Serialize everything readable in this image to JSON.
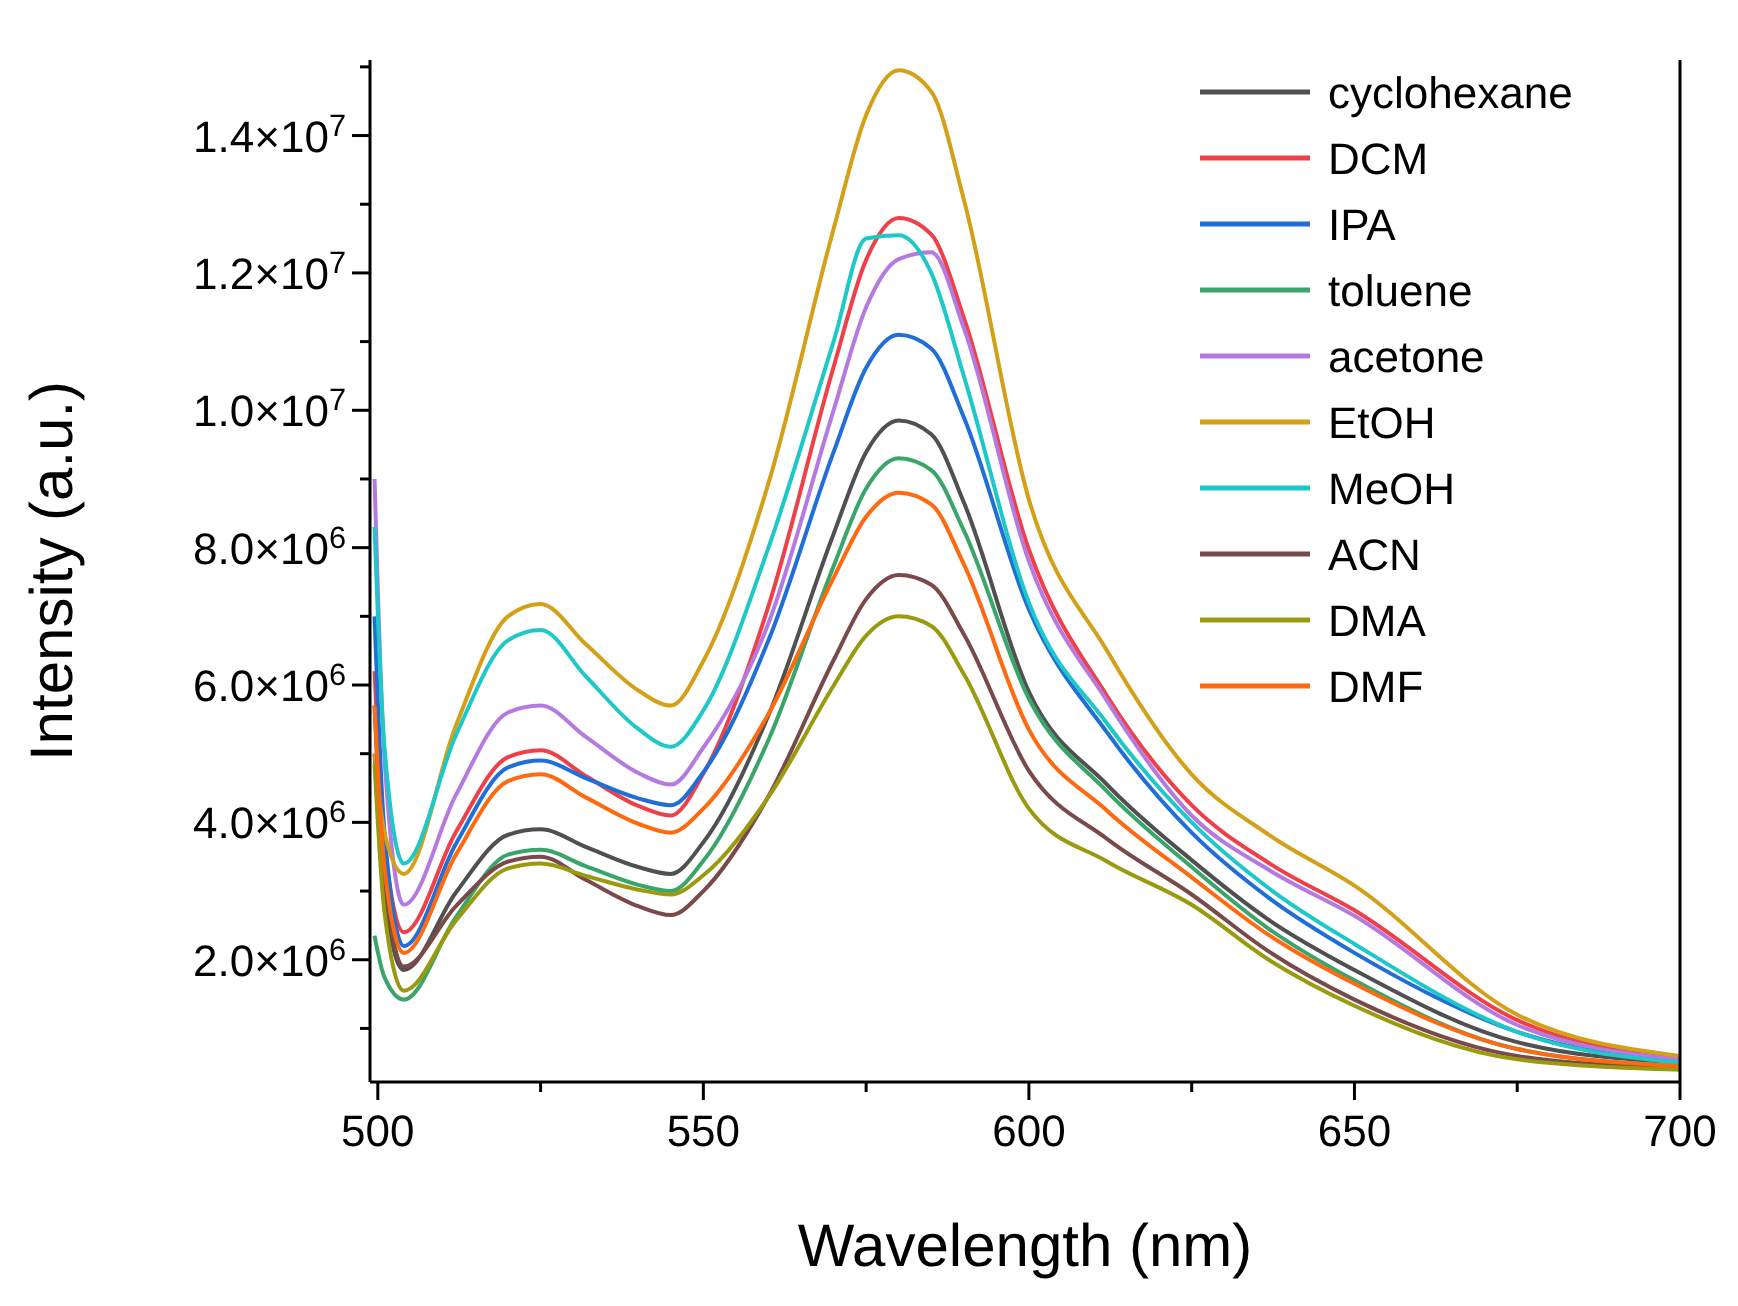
{
  "chart_data": {
    "type": "line",
    "xlabel": "Wavelength (nm)",
    "ylabel": "Intensity (a.u.)",
    "x": [
      499.5,
      501,
      504,
      512,
      520,
      525,
      532,
      540,
      545,
      550,
      560,
      570,
      575,
      580,
      585,
      590,
      600,
      612,
      625,
      637,
      650,
      675,
      700
    ],
    "series": [
      {
        "name": "cyclohexane",
        "color": "#505050",
        "values": [
          5000000.0,
          2950000.0,
          1850000.0,
          2980000.0,
          3820000.0,
          3900000.0,
          3640000.0,
          3350000.0,
          3250000.0,
          3710000.0,
          5560000.0,
          8200000.0,
          9390000.0,
          9850000.0,
          9650000.0,
          8660000.0,
          5900000.0,
          4550000.0,
          3450000.0,
          2570000.0,
          1850000.0,
          800000.0,
          500000.0
        ]
      },
      {
        "name": "DCM",
        "color": "#ef4049",
        "values": [
          6200000.0,
          3730000.0,
          2400000.0,
          3860000.0,
          4950000.0,
          5050000.0,
          4670000.0,
          4240000.0,
          4100000.0,
          4710000.0,
          7150000.0,
          10630000.0,
          12190000.0,
          12800000.0,
          12560000.0,
          11350000.0,
          7970000.0,
          5840000.0,
          4250000.0,
          3400000.0,
          2720000.0,
          1120000.0,
          550000.0
        ]
      },
      {
        "name": "IPA",
        "color": "#1f6fd6",
        "values": [
          7000000.0,
          3880000.0,
          2200000.0,
          3690000.0,
          4800000.0,
          4900000.0,
          4640000.0,
          4350000.0,
          4250000.0,
          4730000.0,
          6650000.0,
          9390000.0,
          10620000.0,
          11100000.0,
          10900000.0,
          9900000.0,
          7100000.0,
          5310000.0,
          3850000.0,
          2890000.0,
          2100000.0,
          950000.0,
          500000.0
        ]
      },
      {
        "name": "toluene",
        "color": "#3aa56b",
        "values": [
          2350000.0,
          1750000.0,
          1420000.0,
          2620000.0,
          3530000.0,
          3600000.0,
          3360000.0,
          3090000.0,
          3000000.0,
          3440000.0,
          5200000.0,
          7730000.0,
          8860000.0,
          9300000.0,
          9130000.0,
          8250000.0,
          5800000.0,
          4450000.0,
          3350000.0,
          2440000.0,
          1700000.0,
          700000.0,
          450000.0
        ]
      },
      {
        "name": "acetone",
        "color": "#b57ae0",
        "values": [
          9000000.0,
          4970000.0,
          2800000.0,
          4400000.0,
          5600000.0,
          5700000.0,
          5240000.0,
          4720000.0,
          4550000.0,
          5090000.0,
          6900000.0,
          10000000.0,
          11500000.0,
          12200000.0,
          12300000.0,
          11200000.0,
          7800000.0,
          5770000.0,
          4100000.0,
          3300000.0,
          2640000.0,
          1050000.0,
          550000.0
        ]
      },
      {
        "name": "EtOH",
        "color": "#d4a017",
        "values": [
          5000000.0,
          3860000.0,
          3250000.0,
          5410000.0,
          7000000.0,
          7180000.0,
          6590000.0,
          5920000.0,
          5700000.0,
          6350000.0,
          8940000.0,
          12640000.0,
          14300000.0,
          14950000.0,
          14640000.0,
          13070000.0,
          8700000.0,
          6500000.0,
          4700000.0,
          3810000.0,
          3080000.0,
          1200000.0,
          600000.0
        ]
      },
      {
        "name": "MeOH",
        "color": "#1fc8c8",
        "values": [
          8300000.0,
          5120000.0,
          3400000.0,
          5270000.0,
          6650000.0,
          6800000.0,
          6120000.0,
          5360000.0,
          5100000.0,
          5630000.0,
          8000000.0,
          11000000.0,
          12500000.0,
          12550000.0,
          12000000.0,
          10500000.0,
          7200000.0,
          5440000.0,
          4000000.0,
          3030000.0,
          2230000.0,
          950000.0,
          500000.0
        ]
      },
      {
        "name": "ACN",
        "color": "#7a4a4a",
        "values": [
          5700000.0,
          3230000.0,
          1900000.0,
          2780000.0,
          3430000.0,
          3500000.0,
          3160000.0,
          2780000.0,
          2650000.0,
          3000000.0,
          4380000.0,
          6360000.0,
          7250000.0,
          7600000.0,
          7460000.0,
          6740000.0,
          4750000.0,
          3760000.0,
          2950000.0,
          2110000.0,
          1420000.0,
          600000.0,
          420000.0
        ]
      },
      {
        "name": "DMA",
        "color": "#9a9a10",
        "values": [
          4850000.0,
          2710000.0,
          1550000.0,
          2570000.0,
          3330000.0,
          3400000.0,
          3220000.0,
          3020000.0,
          2950000.0,
          3230000.0,
          4370000.0,
          5990000.0,
          6720000.0,
          7000000.0,
          6860000.0,
          6160000.0,
          4200000.0,
          3430000.0,
          2800000.0,
          1990000.0,
          1330000.0,
          550000.0,
          400000.0
        ]
      },
      {
        "name": "DMF",
        "color": "#ff6a10",
        "values": [
          5700000.0,
          3360000.0,
          2100000.0,
          3530000.0,
          4600000.0,
          4700000.0,
          4360000.0,
          3980000.0,
          3850000.0,
          4200000.0,
          5580000.0,
          7560000.0,
          8450000.0,
          8800000.0,
          8630000.0,
          7760000.0,
          5350000.0,
          4170000.0,
          3200000.0,
          2350000.0,
          1650000.0,
          700000.0,
          450000.0
        ]
      }
    ],
    "xlim": [
      498.8,
      700
    ],
    "xticks": [
      500,
      {
        "value": 525,
        "label": null
      },
      550,
      {
        "value": 575,
        "label": null
      },
      600,
      {
        "value": 625,
        "label": null
      },
      650,
      {
        "value": 675,
        "label": null
      },
      700
    ],
    "ylim": [
      220000.0,
      15100000.0
    ],
    "yticks": [
      {
        "value": 1000000.0,
        "label": null
      },
      {
        "value": 2000000.0,
        "label": "2.0×10$^{6}$"
      },
      {
        "value": 3000000.0,
        "label": null
      },
      {
        "value": 4000000.0,
        "label": "4.0×10$^{6}$"
      },
      {
        "value": 5000000.0,
        "label": null
      },
      {
        "value": 6000000.0,
        "label": "6.0×10$^{6}$"
      },
      {
        "value": 7000000.0,
        "label": null
      },
      {
        "value": 8000000.0,
        "label": "8.0×10$^{6}$"
      },
      {
        "value": 9000000.0,
        "label": null
      },
      {
        "value": 10000000.0,
        "label": "1.0×10$^{7}$"
      },
      {
        "value": 11000000.0,
        "label": null
      },
      {
        "value": 12000000.0,
        "label": "1.2×10$^{7}$"
      },
      {
        "value": 13000000.0,
        "label": null
      },
      {
        "value": 14000000.0,
        "label": "1.4×10$^{7}$"
      },
      {
        "value": 15000000.0,
        "label": null
      }
    ],
    "grid": false,
    "legend": "top right",
    "marker": "none",
    "line_style": "solid"
  }
}
